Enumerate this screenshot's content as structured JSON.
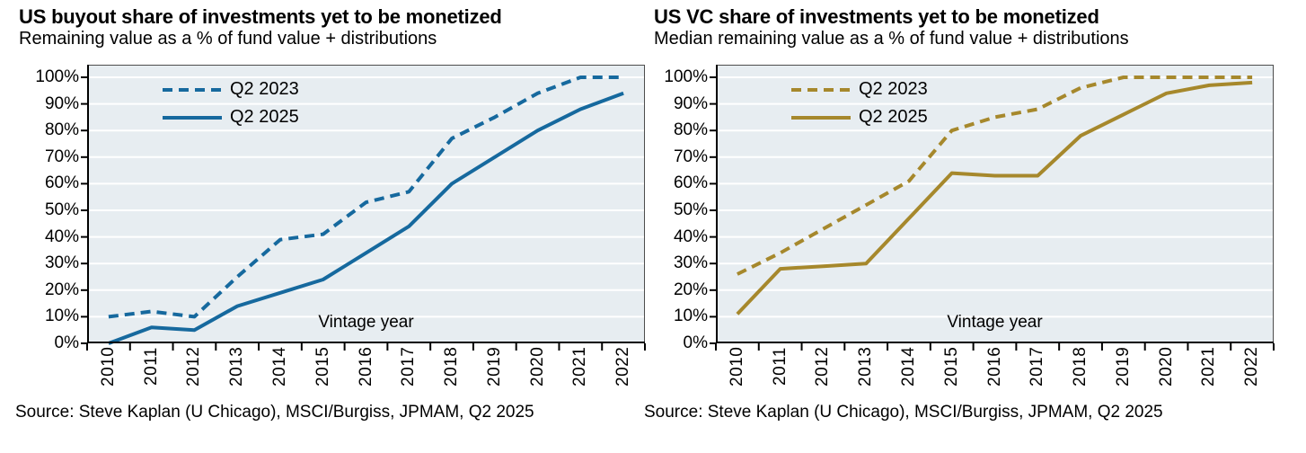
{
  "charts": [
    {
      "title": "US buyout share of investments yet to be monetized",
      "subtitle": "Remaining value as a % of fund value + distributions",
      "source": "Source: Steve Kaplan (U Chicago), MSCI/Burgiss, JPMAM, Q2 2025",
      "inner_label": "Vintage year",
      "series_color": "#16699E",
      "plot_bg_color": "#E7EDF1",
      "gridline_color": "#FFFFFF",
      "chart_data": {
        "type": "line",
        "categories": [
          "2010",
          "2011",
          "2012",
          "2013",
          "2014",
          "2015",
          "2016",
          "2017",
          "2018",
          "2019",
          "2020",
          "2021",
          "2022"
        ],
        "xlabel": "Vintage year",
        "ylabel": "",
        "ylim": [
          0,
          100
        ],
        "yticks": [
          "0%",
          "10%",
          "20%",
          "30%",
          "40%",
          "50%",
          "60%",
          "70%",
          "80%",
          "90%",
          "100%"
        ],
        "grid": true,
        "legend_position": "top-left-inside",
        "series": [
          {
            "name": "Q2 2023",
            "line_style": "dashed",
            "values": [
              10,
              12,
              10,
              25,
              39,
              41,
              53,
              57,
              77,
              85,
              94,
              100,
              100
            ]
          },
          {
            "name": "Q2 2025",
            "line_style": "solid",
            "values": [
              0,
              6,
              5,
              14,
              19,
              24,
              34,
              44,
              60,
              70,
              80,
              88,
              94
            ]
          }
        ]
      }
    },
    {
      "title": "US VC share of investments yet to be monetized",
      "subtitle": "Median remaining value as a % of fund value + distributions",
      "source": "Source: Steve Kaplan (U Chicago), MSCI/Burgiss, JPMAM, Q2 2025",
      "inner_label": "Vintage year",
      "series_color": "#A6882C",
      "plot_bg_color": "#E7EDF1",
      "gridline_color": "#FFFFFF",
      "chart_data": {
        "type": "line",
        "categories": [
          "2010",
          "2011",
          "2012",
          "2013",
          "2014",
          "2015",
          "2016",
          "2017",
          "2018",
          "2019",
          "2020",
          "2021",
          "2022"
        ],
        "xlabel": "Vintage year",
        "ylabel": "",
        "ylim": [
          0,
          100
        ],
        "yticks": [
          "0%",
          "10%",
          "20%",
          "30%",
          "40%",
          "50%",
          "60%",
          "70%",
          "80%",
          "90%",
          "100%"
        ],
        "grid": true,
        "legend_position": "top-left-inside",
        "series": [
          {
            "name": "Q2 2023",
            "line_style": "dashed",
            "values": [
              26,
              34,
              43,
              52,
              61,
              80,
              85,
              88,
              96,
              100,
              100,
              100,
              100
            ]
          },
          {
            "name": "Q2 2025",
            "line_style": "solid",
            "values": [
              11,
              28,
              29,
              30,
              47,
              64,
              63,
              63,
              78,
              86,
              94,
              97,
              98
            ]
          }
        ]
      }
    }
  ]
}
